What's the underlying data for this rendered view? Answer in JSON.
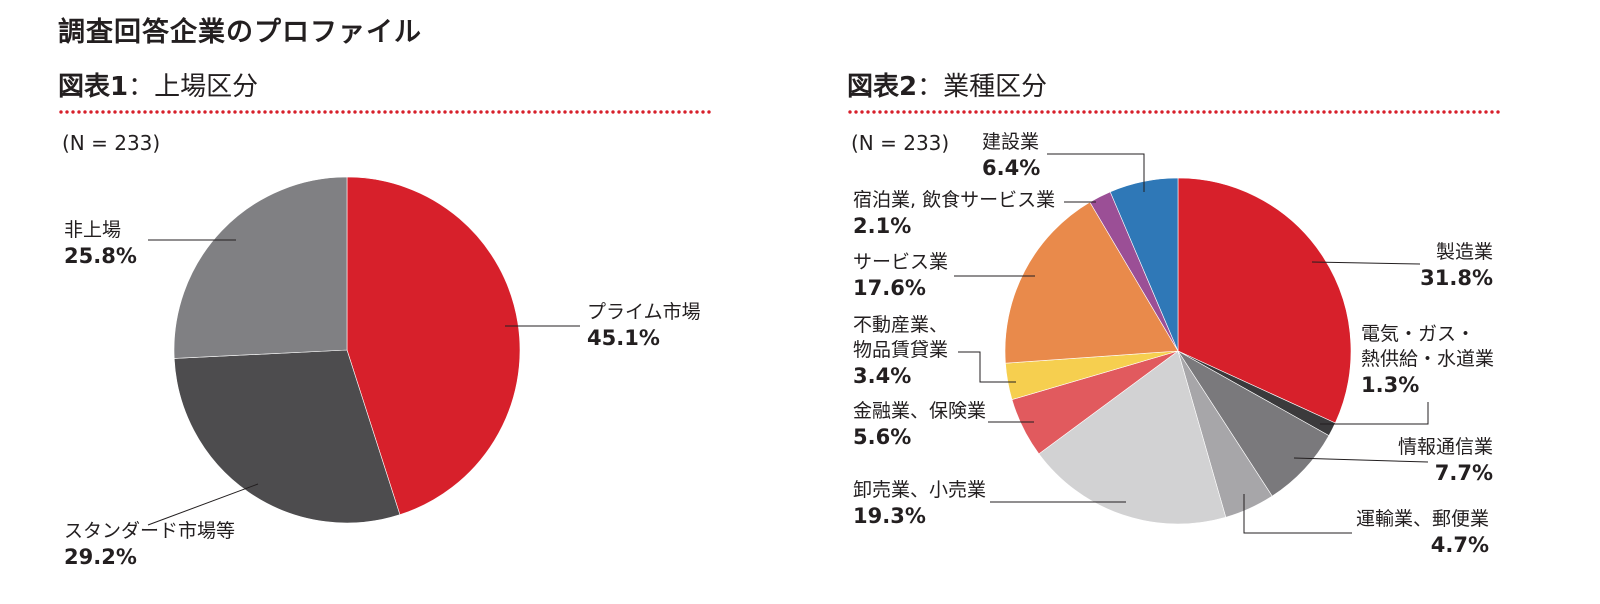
{
  "page": {
    "title": "調査回答企業のプロファイル",
    "colors": {
      "accent": "#d7202b",
      "text": "#231f20"
    }
  },
  "chart_data": [
    {
      "type": "pie",
      "figure_number": "図表1",
      "separator": "：",
      "title": "上場区分",
      "n_label": "(N = 233)",
      "slices": [
        {
          "name": [
            "プライム市場"
          ],
          "value": 45.1,
          "value_label": "45.1%",
          "color": "#d7202b"
        },
        {
          "name": [
            "スタンダード市場等"
          ],
          "value": 29.2,
          "value_label": "29.2%",
          "color": "#4d4c4e"
        },
        {
          "name": [
            "非上場"
          ],
          "value": 25.8,
          "value_label": "25.8%",
          "color": "#808083"
        }
      ]
    },
    {
      "type": "pie",
      "figure_number": "図表2",
      "separator": "：",
      "title": "業種区分",
      "n_label": "(N = 233)",
      "slices": [
        {
          "name": [
            "製造業"
          ],
          "value": 31.8,
          "value_label": "31.8%",
          "color": "#d7202b"
        },
        {
          "name": [
            "電気・ガス・",
            "熱供給・水道業"
          ],
          "value": 1.3,
          "value_label": "1.3%",
          "color": "#3b3a3c"
        },
        {
          "name": [
            "情報通信業"
          ],
          "value": 7.7,
          "value_label": "7.7%",
          "color": "#7a797c"
        },
        {
          "name": [
            "運輸業、郵便業"
          ],
          "value": 4.7,
          "value_label": "4.7%",
          "color": "#a7a6a9"
        },
        {
          "name": [
            "卸売業、小売業"
          ],
          "value": 19.3,
          "value_label": "19.3%",
          "color": "#d2d2d3"
        },
        {
          "name": [
            "金融業、保険業"
          ],
          "value": 5.6,
          "value_label": "5.6%",
          "color": "#e15a5e"
        },
        {
          "name": [
            "不動産業、",
            "物品賃貸業"
          ],
          "value": 3.4,
          "value_label": "3.4%",
          "color": "#f6cf4f"
        },
        {
          "name": [
            "サービス業"
          ],
          "value": 17.6,
          "value_label": "17.6%",
          "color": "#e98a4b"
        },
        {
          "name": [
            "宿泊業, 飲食サービス業"
          ],
          "value": 2.1,
          "value_label": "2.1%",
          "color": "#9b4f96"
        },
        {
          "name": [
            "建設業"
          ],
          "value": 6.4,
          "value_label": "6.4%",
          "color": "#2f78b7"
        }
      ]
    }
  ]
}
